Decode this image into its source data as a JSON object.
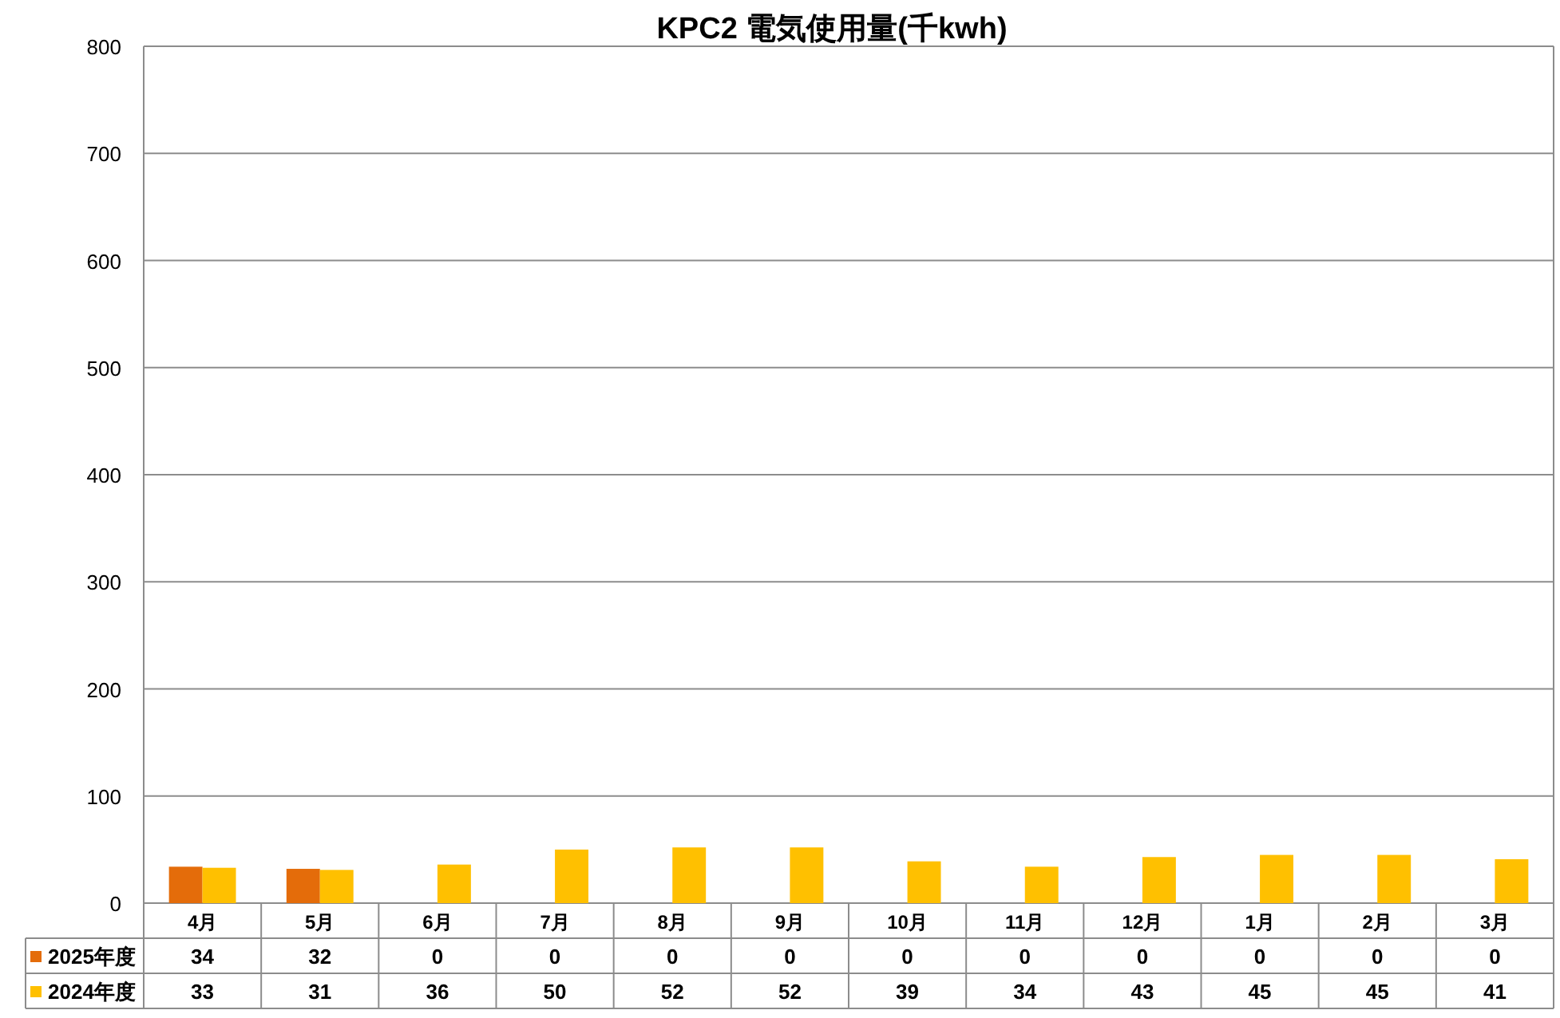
{
  "chart_data": {
    "type": "bar",
    "title": "KPC2 電気使用量(千kwh)",
    "categories": [
      "4月",
      "5月",
      "6月",
      "7月",
      "8月",
      "9月",
      "10月",
      "11月",
      "12月",
      "1月",
      "2月",
      "3月"
    ],
    "series": [
      {
        "name": "2025年度",
        "color": "#e46c0a",
        "values": [
          34,
          32,
          0,
          0,
          0,
          0,
          0,
          0,
          0,
          0,
          0,
          0
        ]
      },
      {
        "name": "2024年度",
        "color": "#ffc000",
        "values": [
          33,
          31,
          36,
          50,
          52,
          52,
          39,
          34,
          43,
          45,
          45,
          41
        ]
      }
    ],
    "ylim": [
      0,
      800
    ],
    "yticks": [
      0,
      100,
      200,
      300,
      400,
      500,
      600,
      700,
      800
    ],
    "grid": "y",
    "legend": "bottom",
    "data_labels": true
  }
}
